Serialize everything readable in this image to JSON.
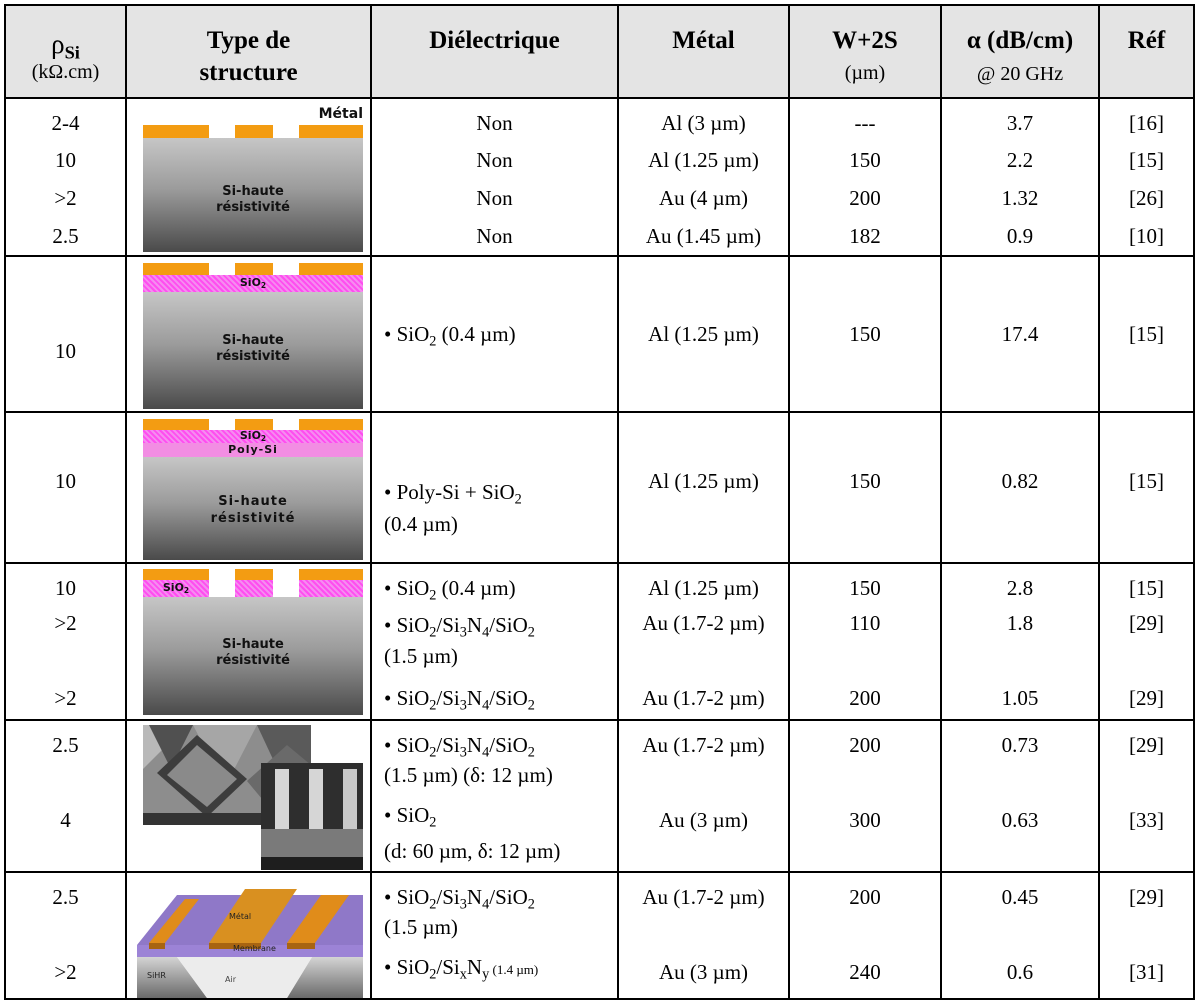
{
  "header": {
    "rho": "ρ",
    "rho_sub": "Si",
    "rho_unit": "(kΩ.cm)",
    "type_line1": "Type de",
    "type_line2": "structure",
    "dielectric": "Diélectrique",
    "metal": "Métal",
    "w2s": "W+2S",
    "w2s_unit": "(µm)",
    "alpha": "α (dB/cm)",
    "alpha_cond": "@ 20 GHz",
    "ref": "Réf"
  },
  "diagram_labels": {
    "metal": "Métal",
    "si_line1": "Si-haute",
    "si_line2": "résistivité",
    "sio2": "SiO",
    "sio2_sub": "2",
    "poly": "Poly-Si",
    "membrane": "Membrane",
    "sihr": "SiHR",
    "air": "Air",
    "metal_small": "Métal"
  },
  "rows": [
    {
      "rho": "2-4",
      "diel": "Non",
      "metal": "Al (3 µm)",
      "w": "---",
      "alpha": "3.7",
      "ref": "[16]"
    },
    {
      "rho": "10",
      "diel": "Non",
      "metal": "Al (1.25 µm)",
      "w": "150",
      "alpha": "2.2",
      "ref": "[15]"
    },
    {
      "rho": ">2",
      "diel": "Non",
      "metal": "Au (4 µm)",
      "w": "200",
      "alpha": "1.32",
      "ref": "[26]"
    },
    {
      "rho": "2.5",
      "diel": "Non",
      "metal": "Au (1.45 µm)",
      "w": "182",
      "alpha": "0.9",
      "ref": "[10]"
    },
    {
      "rho": "10",
      "diel_a": "• SiO",
      "diel_a_sub": "2",
      "diel_b": " (0.4 µm)",
      "metal": "Al (1.25 µm)",
      "w": "150",
      "alpha": "17.4",
      "ref": "[15]"
    },
    {
      "rho": "10",
      "diel_a": "• Poly-Si + SiO",
      "diel_a_sub": "2",
      "diel_line2": "(0.4 µm)",
      "metal": "Al (1.25 µm)",
      "w": "150",
      "alpha": "0.82",
      "ref": "[15]"
    },
    {
      "rho": "10",
      "diel_a": "• SiO",
      "diel_a_sub": "2",
      "diel_b": " (0.4 µm)",
      "metal": "Al (1.25 µm)",
      "w": "150",
      "alpha": "2.8",
      "ref": "[15]"
    },
    {
      "rho": ">2",
      "diel_line2": "(1.5 µm)",
      "metal": "Au (1.7-2 µm)",
      "w": "110",
      "alpha": "1.8",
      "ref": "[29]"
    },
    {
      "rho": ">2",
      "metal": "Au (1.7-2 µm)",
      "w": "200",
      "alpha": "1.05",
      "ref": "[29]"
    },
    {
      "rho": "2.5",
      "diel_line2": "(1.5 µm) (δ: 12 µm)",
      "metal": "Au (1.7-2 µm)",
      "w": "200",
      "alpha": "0.73",
      "ref": "[29]"
    },
    {
      "rho": "4",
      "diel_a": "• SiO",
      "diel_a_sub": "2",
      "diel_line2": "(d: 60 µm, δ: 12 µm)",
      "metal": "Au (3 µm)",
      "w": "300",
      "alpha": "0.63",
      "ref": "[33]"
    },
    {
      "rho": "2.5",
      "diel_line2": "(1.5 µm)",
      "metal": "Au (1.7-2 µm)",
      "w": "200",
      "alpha": "0.45",
      "ref": "[29]"
    },
    {
      "rho": ">2",
      "diel_sixny_b": "/Si",
      "diel_sixny_x": "x",
      "diel_sixny_n": "N",
      "diel_sixny_y": "y",
      "diel_sixny_c": "(1.4 µm)",
      "metal": "Au (3 µm)",
      "w": "240",
      "alpha": "0.6",
      "ref": "[31]"
    }
  ],
  "stack": {
    "bullet": "• SiO",
    "s2": "2",
    "si": "/Si",
    "s3": "3",
    "n": "N",
    "s4": "4",
    "sio": "/SiO"
  }
}
